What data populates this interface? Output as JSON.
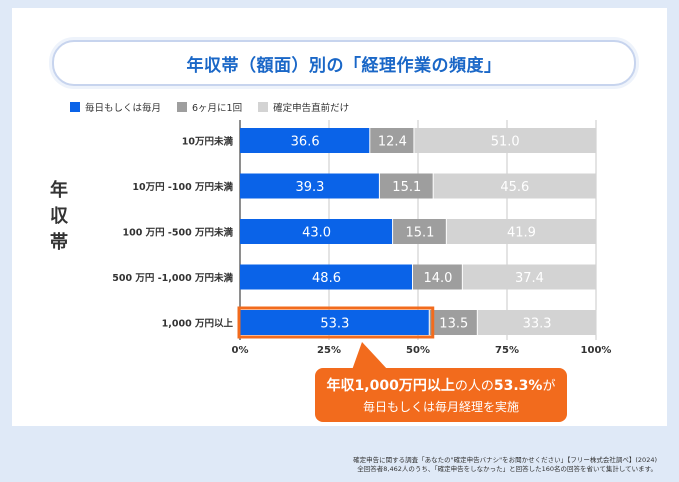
{
  "title": "年収帯（額面）別の「経理作業の頻度」",
  "y_axis_title_chars": [
    "年",
    "収",
    "帯"
  ],
  "legend": [
    {
      "label": "毎日もしくは毎月",
      "color": "#0a63e8"
    },
    {
      "label": "6ヶ月に1回",
      "color": "#9e9e9e"
    },
    {
      "label": "確定申告直前だけ",
      "color": "#d3d3d3"
    }
  ],
  "callout": {
    "line1_bold_a": "年収1,000万円以上",
    "line1_mid": "の人の",
    "line1_bold_b": "53.3%",
    "line1_end": "が",
    "line2": "毎日もしくは毎月経理を実施"
  },
  "source_lines": [
    "確定申告に関する調査「あなたの\"確定申告バナシ\"をお聞かせください」【フリー株式会社調べ】(2024)",
    "全回答者8,462人のうち、「確定申告をしなかった」と回答した160名の回答を省いて集計しています。"
  ],
  "chart_data": {
    "type": "bar",
    "orientation": "horizontal",
    "stacked": true,
    "categories": [
      "10万円未満",
      "10万円 -100 万円未満",
      "100 万円 -500 万円未満",
      "500 万円 -1,000 万円未満",
      "1,000 万円以上"
    ],
    "series": [
      {
        "name": "毎日もしくは毎月",
        "values": [
          36.6,
          39.3,
          43.0,
          48.6,
          53.3
        ]
      },
      {
        "name": "6ヶ月に1回",
        "values": [
          12.4,
          15.1,
          15.1,
          14.0,
          13.5
        ]
      },
      {
        "name": "確定申告直前だけ",
        "values": [
          51.0,
          45.6,
          41.9,
          37.4,
          33.3
        ]
      }
    ],
    "series_colors": [
      "#0a63e8",
      "#9e9e9e",
      "#d3d3d3"
    ],
    "value_labels": [
      [
        "36.6",
        "12.4",
        "51.0"
      ],
      [
        "39.3",
        "15.1",
        "45.6"
      ],
      [
        "43.0",
        "15.1",
        "41.9"
      ],
      [
        "48.6",
        "14.0",
        "37.4"
      ],
      [
        "53.3",
        "13.5",
        "33.3"
      ]
    ],
    "x_ticks": [
      "0%",
      "25%",
      "50%",
      "75%",
      "100%"
    ],
    "xlim": [
      0,
      100
    ],
    "grid": true,
    "highlight_category": "1,000 万円以上",
    "highlight_color": "#f26b1d"
  }
}
